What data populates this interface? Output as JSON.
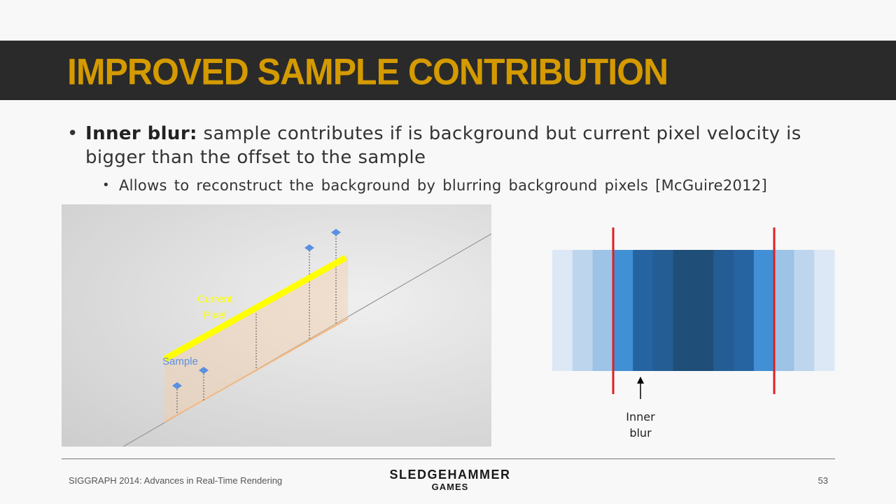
{
  "title": "IMPROVED SAMPLE CONTRIBUTION",
  "bullet1": {
    "bold": "Inner blur:",
    "text": " sample contributes if is background but current pixel velocity is bigger than the offset to the sample"
  },
  "bullet2": {
    "text": "Allows to reconstruct the background by blurring background pixels [McGuire2012]"
  },
  "figure_left": {
    "current_pixel_label_1": "Current",
    "current_pixel_label_2": "Pixel",
    "sample_label": "Sample"
  },
  "figure_right": {
    "inner_blur_label_1": "Inner",
    "inner_blur_label_2": "blur",
    "band_colors": [
      "#dce8f5",
      "#bdd6ee",
      "#9dc3e6",
      "#418fd4",
      "#2564a0",
      "#245c94",
      "#1f4e79",
      "#1f4e79",
      "#245c94",
      "#2564a0",
      "#418fd4",
      "#9dc3e6",
      "#bdd6ee",
      "#dce8f5"
    ],
    "marker_color": "#e02020"
  },
  "footer": {
    "conference": "SIGGRAPH 2014: Advances in Real-Time Rendering",
    "logo_line1": "SLEDGEHAMMER",
    "logo_line2": "GAMES",
    "page_number": "53"
  },
  "colors": {
    "title": "#d49a00",
    "title_bar": "#2a2a2a",
    "current_pixel": "#ffff00",
    "sample": "#5b8fe0"
  }
}
